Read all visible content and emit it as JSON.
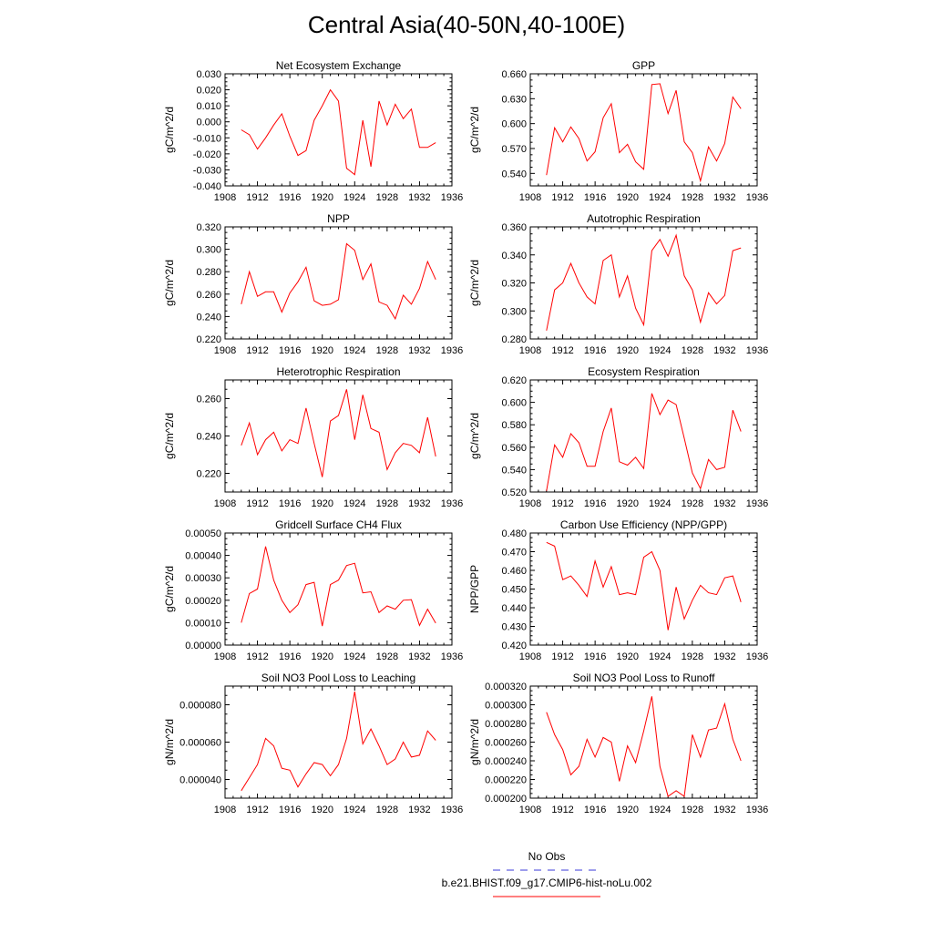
{
  "title": "Central Asia(40-50N,40-100E)",
  "chart_data": [
    {
      "type": "line",
      "title": "Net Ecosystem Exchange",
      "ylabel": "gC/m^2/d",
      "xlim": [
        1908,
        1936
      ],
      "ylim": [
        -0.04,
        0.03
      ],
      "yticks": [
        -0.04,
        -0.03,
        -0.02,
        -0.01,
        0.0,
        0.01,
        0.02,
        0.03
      ],
      "ytick_labels": [
        "-0.040",
        "-0.030",
        "-0.020",
        "-0.010",
        "0.000",
        "0.010",
        "0.020",
        "0.030"
      ],
      "xticks": [
        1908,
        1912,
        1916,
        1920,
        1924,
        1928,
        1932,
        1936
      ],
      "x": [
        1910,
        1911,
        1912,
        1913,
        1914,
        1915,
        1916,
        1917,
        1918,
        1919,
        1920,
        1921,
        1922,
        1923,
        1924,
        1925,
        1926,
        1927,
        1928,
        1929,
        1930,
        1931,
        1932,
        1933,
        1934
      ],
      "values": [
        -0.005,
        -0.008,
        -0.017,
        -0.01,
        -0.002,
        0.005,
        -0.009,
        -0.021,
        -0.018,
        0.001,
        0.01,
        0.02,
        0.013,
        -0.029,
        -0.033,
        0.001,
        -0.028,
        0.013,
        -0.002,
        0.011,
        0.002,
        0.008,
        -0.016,
        -0.016,
        -0.013
      ]
    },
    {
      "type": "line",
      "title": "GPP",
      "ylabel": "gC/m^2/d",
      "xlim": [
        1908,
        1936
      ],
      "ylim": [
        0.525,
        0.66
      ],
      "yticks": [
        0.54,
        0.57,
        0.6,
        0.63,
        0.66
      ],
      "ytick_labels": [
        "0.540",
        "0.570",
        "0.600",
        "0.630",
        "0.660"
      ],
      "xticks": [
        1908,
        1912,
        1916,
        1920,
        1924,
        1928,
        1932,
        1936
      ],
      "x": [
        1910,
        1911,
        1912,
        1913,
        1914,
        1915,
        1916,
        1917,
        1918,
        1919,
        1920,
        1921,
        1922,
        1923,
        1924,
        1925,
        1926,
        1927,
        1928,
        1929,
        1930,
        1931,
        1932,
        1933,
        1934
      ],
      "values": [
        0.538,
        0.595,
        0.578,
        0.596,
        0.582,
        0.555,
        0.566,
        0.607,
        0.624,
        0.565,
        0.575,
        0.554,
        0.545,
        0.647,
        0.648,
        0.612,
        0.64,
        0.578,
        0.565,
        0.531,
        0.572,
        0.555,
        0.576,
        0.632,
        0.618
      ]
    },
    {
      "type": "line",
      "title": "NPP",
      "ylabel": "gC/m^2/d",
      "xlim": [
        1908,
        1936
      ],
      "ylim": [
        0.22,
        0.32
      ],
      "yticks": [
        0.22,
        0.24,
        0.26,
        0.28,
        0.3,
        0.32
      ],
      "ytick_labels": [
        "0.220",
        "0.240",
        "0.260",
        "0.280",
        "0.300",
        "0.320"
      ],
      "xticks": [
        1908,
        1912,
        1916,
        1920,
        1924,
        1928,
        1932,
        1936
      ],
      "x": [
        1910,
        1911,
        1912,
        1913,
        1914,
        1915,
        1916,
        1917,
        1918,
        1919,
        1920,
        1921,
        1922,
        1923,
        1924,
        1925,
        1926,
        1927,
        1928,
        1929,
        1930,
        1931,
        1932,
        1933,
        1934
      ],
      "values": [
        0.251,
        0.28,
        0.258,
        0.262,
        0.262,
        0.244,
        0.261,
        0.271,
        0.284,
        0.254,
        0.25,
        0.251,
        0.255,
        0.305,
        0.299,
        0.273,
        0.287,
        0.253,
        0.25,
        0.238,
        0.259,
        0.251,
        0.265,
        0.289,
        0.273
      ]
    },
    {
      "type": "line",
      "title": "Autotrophic Respiration",
      "ylabel": "gC/m^2/d",
      "xlim": [
        1908,
        1936
      ],
      "ylim": [
        0.28,
        0.36
      ],
      "yticks": [
        0.28,
        0.3,
        0.32,
        0.34,
        0.36
      ],
      "ytick_labels": [
        "0.280",
        "0.300",
        "0.320",
        "0.340",
        "0.360"
      ],
      "xticks": [
        1908,
        1912,
        1916,
        1920,
        1924,
        1928,
        1932,
        1936
      ],
      "x": [
        1910,
        1911,
        1912,
        1913,
        1914,
        1915,
        1916,
        1917,
        1918,
        1919,
        1920,
        1921,
        1922,
        1923,
        1924,
        1925,
        1926,
        1927,
        1928,
        1929,
        1930,
        1931,
        1932,
        1933,
        1934
      ],
      "values": [
        0.286,
        0.315,
        0.32,
        0.334,
        0.32,
        0.31,
        0.305,
        0.336,
        0.34,
        0.31,
        0.325,
        0.302,
        0.29,
        0.343,
        0.351,
        0.339,
        0.354,
        0.325,
        0.315,
        0.292,
        0.313,
        0.305,
        0.311,
        0.343,
        0.345
      ]
    },
    {
      "type": "line",
      "title": "Heterotrophic Respiration",
      "ylabel": "gC/m^2/d",
      "xlim": [
        1908,
        1936
      ],
      "ylim": [
        0.21,
        0.27
      ],
      "yticks": [
        0.22,
        0.24,
        0.26
      ],
      "ytick_labels": [
        "0.220",
        "0.240",
        "0.260"
      ],
      "xticks": [
        1908,
        1912,
        1916,
        1920,
        1924,
        1928,
        1932,
        1936
      ],
      "x": [
        1910,
        1911,
        1912,
        1913,
        1914,
        1915,
        1916,
        1917,
        1918,
        1919,
        1920,
        1921,
        1922,
        1923,
        1924,
        1925,
        1926,
        1927,
        1928,
        1929,
        1930,
        1931,
        1932,
        1933,
        1934
      ],
      "values": [
        0.235,
        0.247,
        0.23,
        0.238,
        0.242,
        0.232,
        0.238,
        0.236,
        0.255,
        0.236,
        0.218,
        0.248,
        0.251,
        0.265,
        0.238,
        0.262,
        0.244,
        0.242,
        0.222,
        0.231,
        0.236,
        0.235,
        0.231,
        0.25,
        0.229
      ]
    },
    {
      "type": "line",
      "title": "Ecosystem Respiration",
      "ylabel": "gC/m^2/d",
      "xlim": [
        1908,
        1936
      ],
      "ylim": [
        0.52,
        0.62
      ],
      "yticks": [
        0.52,
        0.54,
        0.56,
        0.58,
        0.6,
        0.62
      ],
      "ytick_labels": [
        "0.520",
        "0.540",
        "0.560",
        "0.580",
        "0.600",
        "0.620"
      ],
      "xticks": [
        1908,
        1912,
        1916,
        1920,
        1924,
        1928,
        1932,
        1936
      ],
      "x": [
        1910,
        1911,
        1912,
        1913,
        1914,
        1915,
        1916,
        1917,
        1918,
        1919,
        1920,
        1921,
        1922,
        1923,
        1924,
        1925,
        1926,
        1927,
        1928,
        1929,
        1930,
        1931,
        1932,
        1933,
        1934
      ],
      "values": [
        0.521,
        0.562,
        0.551,
        0.572,
        0.564,
        0.543,
        0.543,
        0.574,
        0.595,
        0.547,
        0.544,
        0.551,
        0.541,
        0.608,
        0.589,
        0.602,
        0.598,
        0.568,
        0.537,
        0.523,
        0.549,
        0.54,
        0.542,
        0.593,
        0.574
      ]
    },
    {
      "type": "line",
      "title": "Gridcell Surface CH4 Flux",
      "ylabel": "gC/m^2/d",
      "xlim": [
        1908,
        1936
      ],
      "ylim": [
        0.0,
        0.0005
      ],
      "yticks": [
        0.0,
        0.0001,
        0.0002,
        0.0003,
        0.0004,
        0.0005
      ],
      "ytick_labels": [
        "0.00000",
        "0.00010",
        "0.00020",
        "0.00030",
        "0.00040",
        "0.00050"
      ],
      "xticks": [
        1908,
        1912,
        1916,
        1920,
        1924,
        1928,
        1932,
        1936
      ],
      "x": [
        1910,
        1911,
        1912,
        1913,
        1914,
        1915,
        1916,
        1917,
        1918,
        1919,
        1920,
        1921,
        1922,
        1923,
        1924,
        1925,
        1926,
        1927,
        1928,
        1929,
        1930,
        1931,
        1932,
        1933,
        1934
      ],
      "values": [
        0.0001,
        0.00023,
        0.00025,
        0.00044,
        0.00029,
        0.0002,
        0.000145,
        0.00018,
        0.00027,
        0.00028,
        8.5e-05,
        0.00027,
        0.00029,
        0.000355,
        0.000365,
        0.000233,
        0.000238,
        0.000145,
        0.000175,
        0.00016,
        0.0002,
        0.000203,
        8.8e-05,
        0.00016,
        9.8e-05
      ]
    },
    {
      "type": "line",
      "title": "Carbon Use Efficiency (NPP/GPP)",
      "ylabel": "NPP/GPP",
      "xlim": [
        1908,
        1936
      ],
      "ylim": [
        0.42,
        0.48
      ],
      "yticks": [
        0.42,
        0.43,
        0.44,
        0.45,
        0.46,
        0.47,
        0.48
      ],
      "ytick_labels": [
        "0.420",
        "0.430",
        "0.440",
        "0.450",
        "0.460",
        "0.470",
        "0.480"
      ],
      "xticks": [
        1908,
        1912,
        1916,
        1920,
        1924,
        1928,
        1932,
        1936
      ],
      "x": [
        1910,
        1911,
        1912,
        1913,
        1914,
        1915,
        1916,
        1917,
        1918,
        1919,
        1920,
        1921,
        1922,
        1923,
        1924,
        1925,
        1926,
        1927,
        1928,
        1929,
        1930,
        1931,
        1932,
        1933,
        1934
      ],
      "values": [
        0.475,
        0.473,
        0.455,
        0.457,
        0.452,
        0.446,
        0.465,
        0.451,
        0.462,
        0.447,
        0.448,
        0.447,
        0.467,
        0.47,
        0.46,
        0.428,
        0.451,
        0.434,
        0.444,
        0.452,
        0.448,
        0.447,
        0.456,
        0.457,
        0.443
      ]
    },
    {
      "type": "line",
      "title": "Soil NO3 Pool Loss to Leaching",
      "ylabel": "gN/m^2/d",
      "xlim": [
        1908,
        1936
      ],
      "ylim": [
        3e-05,
        9e-05
      ],
      "yticks": [
        4e-05,
        6e-05,
        8e-05
      ],
      "ytick_labels": [
        "0.000040",
        "0.000060",
        "0.000080"
      ],
      "xticks": [
        1908,
        1912,
        1916,
        1920,
        1924,
        1928,
        1932,
        1936
      ],
      "x": [
        1910,
        1911,
        1912,
        1913,
        1914,
        1915,
        1916,
        1917,
        1918,
        1919,
        1920,
        1921,
        1922,
        1923,
        1924,
        1925,
        1926,
        1927,
        1928,
        1929,
        1930,
        1931,
        1932,
        1933,
        1934
      ],
      "values": [
        3.4e-05,
        4.1e-05,
        4.8e-05,
        6.2e-05,
        5.8e-05,
        4.6e-05,
        4.5e-05,
        3.6e-05,
        4.3e-05,
        4.9e-05,
        4.8e-05,
        4.2e-05,
        4.8e-05,
        6.2e-05,
        8.7e-05,
        5.9e-05,
        6.7e-05,
        5.8e-05,
        4.8e-05,
        5.1e-05,
        6e-05,
        5.2e-05,
        5.3e-05,
        6.6e-05,
        6.1e-05
      ]
    },
    {
      "type": "line",
      "title": "Soil NO3 Pool Loss to Runoff",
      "ylabel": "gN/m^2/d",
      "xlim": [
        1908,
        1936
      ],
      "ylim": [
        0.0002,
        0.00032
      ],
      "yticks": [
        0.0002,
        0.00022,
        0.00024,
        0.00026,
        0.00028,
        0.0003,
        0.00032
      ],
      "ytick_labels": [
        "0.000200",
        "0.000220",
        "0.000240",
        "0.000260",
        "0.000280",
        "0.000300",
        "0.000320"
      ],
      "xticks": [
        1908,
        1912,
        1916,
        1920,
        1924,
        1928,
        1932,
        1936
      ],
      "x": [
        1910,
        1911,
        1912,
        1913,
        1914,
        1915,
        1916,
        1917,
        1918,
        1919,
        1920,
        1921,
        1922,
        1923,
        1924,
        1925,
        1926,
        1927,
        1928,
        1929,
        1930,
        1931,
        1932,
        1933,
        1934
      ],
      "values": [
        0.000292,
        0.000268,
        0.000252,
        0.000225,
        0.000234,
        0.000263,
        0.000244,
        0.000265,
        0.00026,
        0.000218,
        0.000256,
        0.000238,
        0.000272,
        0.000309,
        0.000234,
        0.000202,
        0.000208,
        0.000202,
        0.000268,
        0.000244,
        0.000273,
        0.000275,
        0.000301,
        0.000263,
        0.00024
      ]
    }
  ],
  "legend": {
    "entries": [
      {
        "label": "No Obs",
        "color": "#3a3ad8",
        "dashed": true
      },
      {
        "label": "b.e21.BHIST.f09_g17.CMIP6-hist-noLu.002",
        "color": "#ff0000",
        "dashed": false
      }
    ]
  },
  "colors": {
    "series": "#ff0000",
    "axis": "#000000"
  }
}
